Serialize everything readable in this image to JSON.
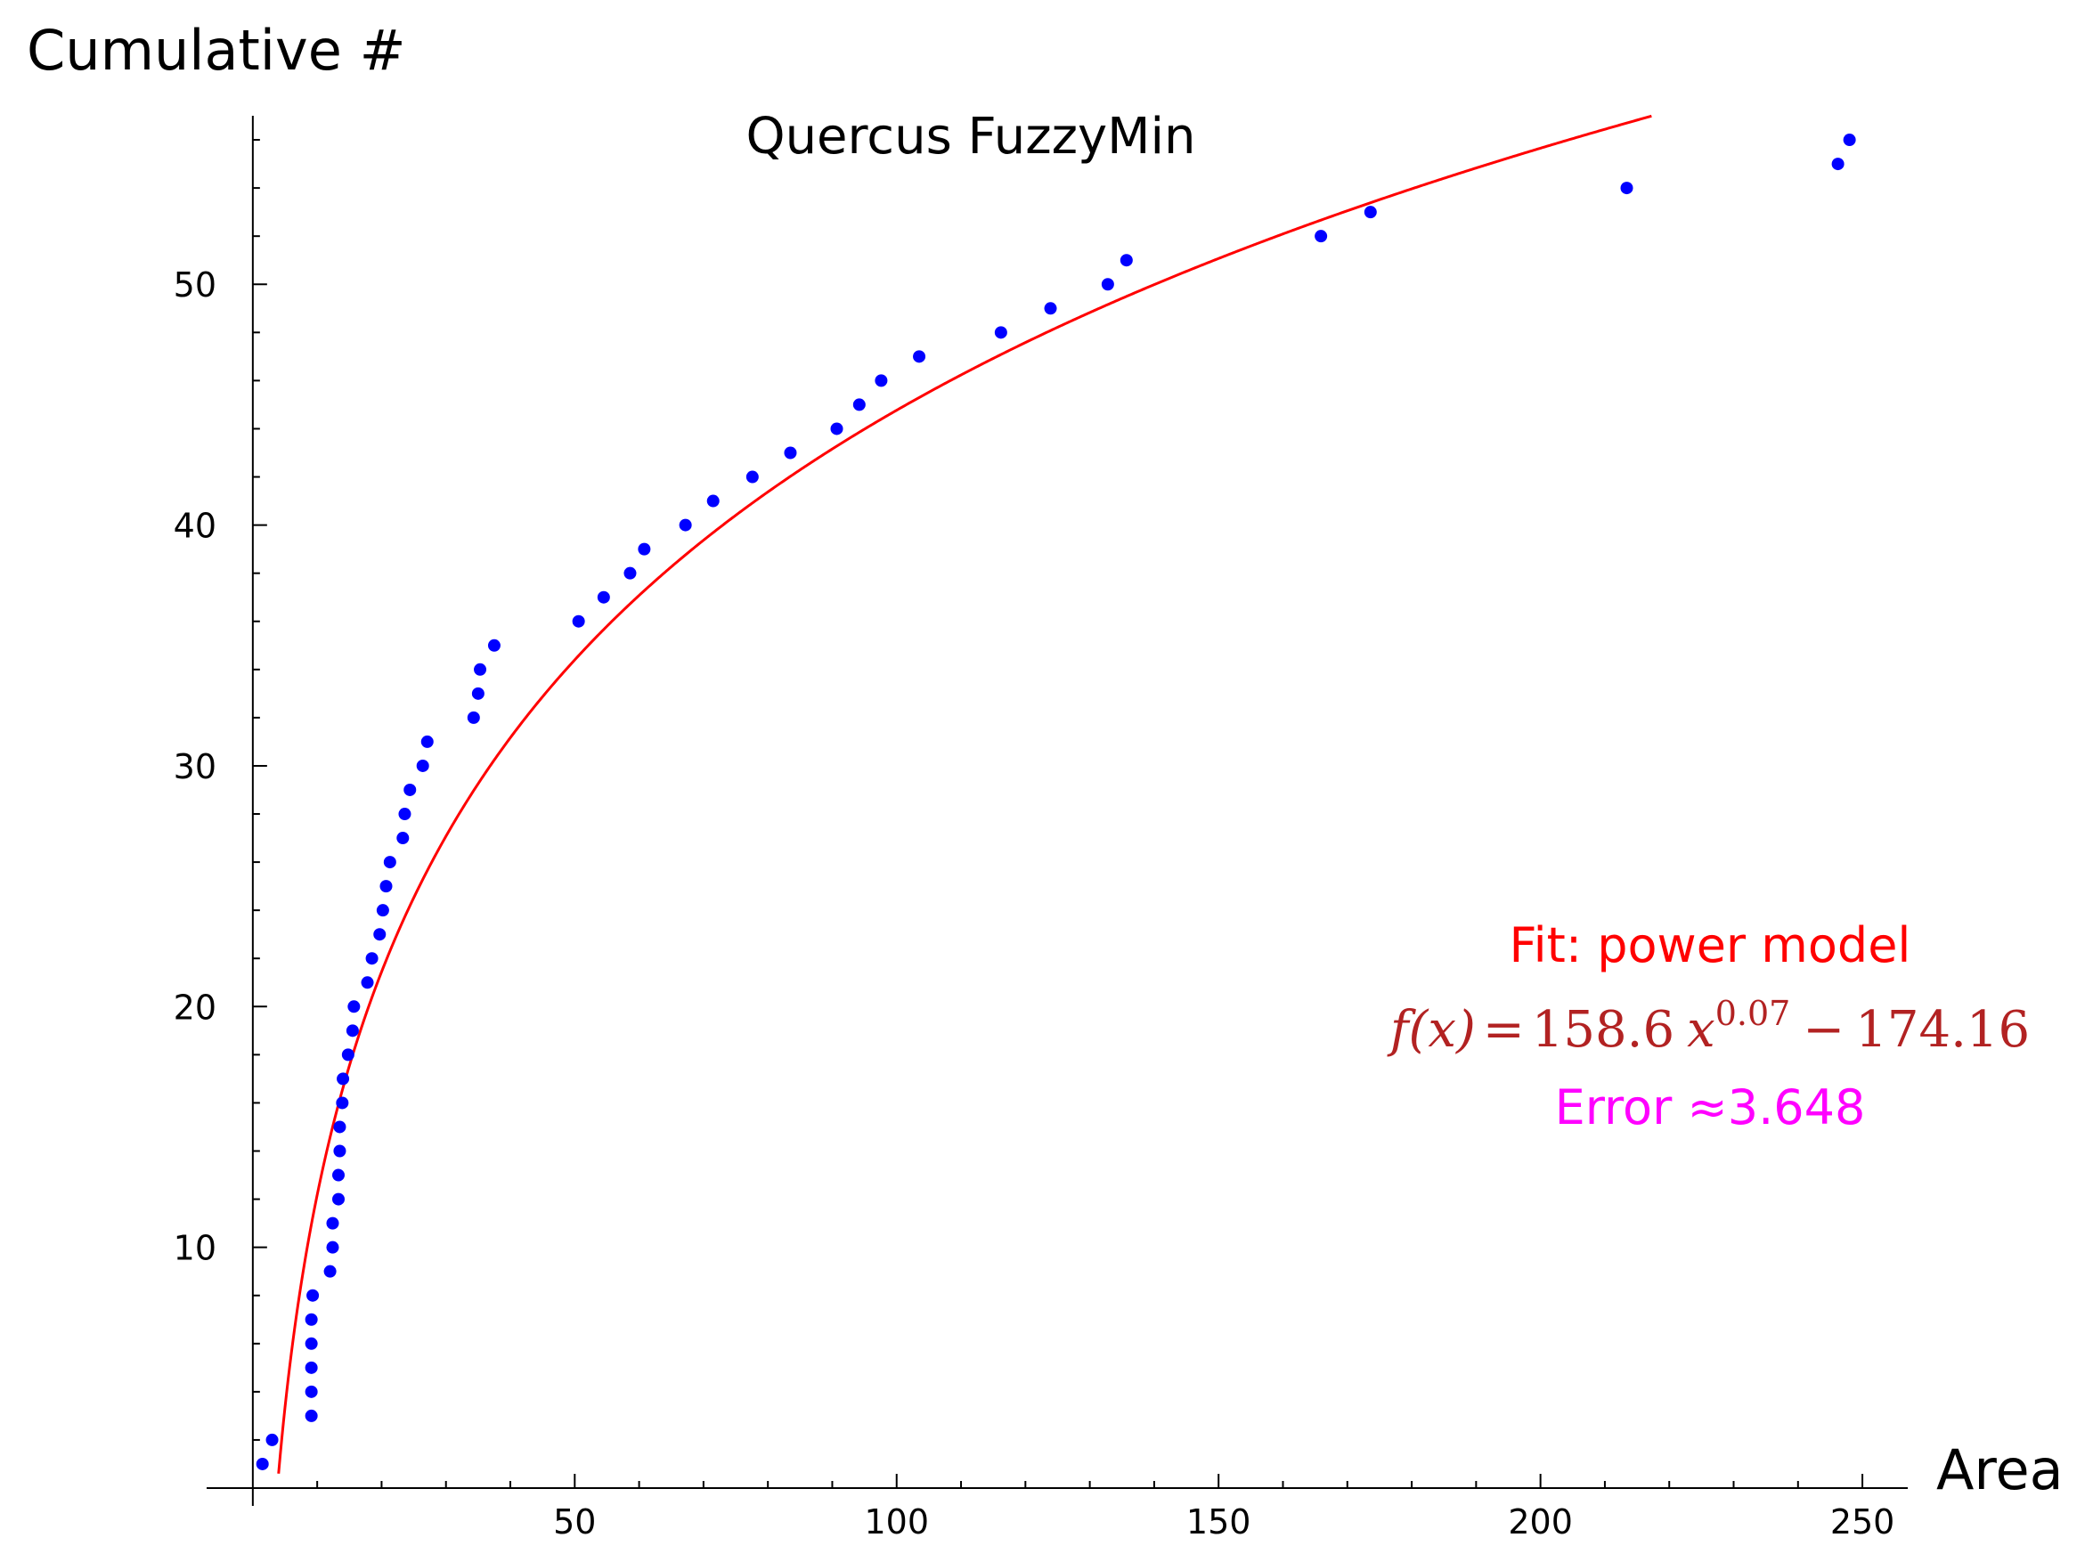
{
  "chart_data": {
    "type": "scatter",
    "title": "Quercus FuzzyMin",
    "xlabel": "Area",
    "ylabel": "Cumulative #",
    "xlim": [
      -3.3,
      254
    ],
    "ylim": [
      0,
      57
    ],
    "x_ticks": [
      50,
      100,
      150,
      200,
      250
    ],
    "y_ticks": [
      10,
      20,
      30,
      40,
      50
    ],
    "x_minor_step": 10,
    "y_minor_step": 2,
    "grid": false,
    "points": {
      "color": "#0000ff",
      "x": [
        1.5,
        3.0,
        9.1,
        9.1,
        9.1,
        9.1,
        9.1,
        9.3,
        12.0,
        12.4,
        12.4,
        13.3,
        13.3,
        13.5,
        13.5,
        13.9,
        14.0,
        14.8,
        15.5,
        15.7,
        17.8,
        18.5,
        19.7,
        20.2,
        20.7,
        21.3,
        23.3,
        23.6,
        24.4,
        26.4,
        27.1,
        34.3,
        35.0,
        35.3,
        37.5,
        50.6,
        54.5,
        58.6,
        60.8,
        67.2,
        71.5,
        77.6,
        83.5,
        90.7,
        94.2,
        97.6,
        103.5,
        116.2,
        123.9,
        132.8,
        135.7,
        165.9,
        173.6,
        213.4,
        246.2,
        248.0
      ],
      "y": [
        1,
        2,
        3,
        4,
        5,
        6,
        7,
        8,
        9,
        10,
        11,
        12,
        13,
        14,
        15,
        16,
        17,
        18,
        19,
        20,
        21,
        22,
        23,
        24,
        25,
        26,
        27,
        28,
        29,
        30,
        31,
        32,
        33,
        34,
        35,
        36,
        37,
        38,
        39,
        40,
        41,
        42,
        43,
        44,
        45,
        46,
        47,
        48,
        49,
        50,
        51,
        52,
        53,
        54,
        55,
        56
      ]
    },
    "fit": {
      "color": "#ff0000",
      "a": 158.6,
      "b": 0.07,
      "c": -174.16
    },
    "annotations": {
      "fit_label": "Fit: power model",
      "fit_label_color": "#ff0000",
      "formula_color": "#b22222",
      "formula_parts": {
        "lhs": "f(x)",
        "eq": "=",
        "coef": "158.6",
        "var": "x",
        "exp": "0.07",
        "minus": "−",
        "const": "174.16"
      },
      "error_label": "Error ≈3.648",
      "error_color": "#ff00ff"
    }
  }
}
